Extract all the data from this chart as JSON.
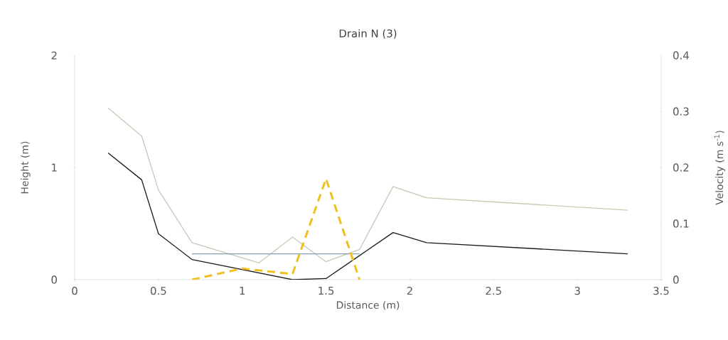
{
  "chart_data": {
    "type": "line",
    "title": "Drain N (3)",
    "xlabel": "Distance (m)",
    "ylabel": "Height (m)",
    "y2label": "Velocity (m s$^{-1}$)",
    "xlim": [
      0,
      3.5
    ],
    "xticks": [
      0,
      0.5,
      1,
      1.5,
      2,
      2.5,
      3,
      3.5
    ],
    "ylim": [
      0,
      2
    ],
    "yticks": [
      0,
      1,
      2
    ],
    "y2lim": [
      0,
      0.4
    ],
    "y2ticks": [
      0,
      0.1,
      0.2,
      0.3,
      0.4
    ],
    "grid": false,
    "marker": "none",
    "series": [
      {
        "color": "#c8c8b4",
        "line_style": "solid",
        "x": [
          0.2,
          0.4,
          0.5,
          0.7,
          1.1,
          1.3,
          1.5,
          1.7,
          1.9,
          2.1,
          3.3
        ],
        "values": [
          1.53,
          1.28,
          0.8,
          0.33,
          0.15,
          0.38,
          0.16,
          0.27,
          0.83,
          0.73,
          0.62
        ]
      },
      {
        "color": "#1a1a1a",
        "line_style": "solid",
        "x": [
          0.2,
          0.4,
          0.5,
          0.7,
          1.3,
          1.5,
          1.9,
          2.1,
          3.3
        ],
        "values": [
          1.13,
          0.89,
          0.41,
          0.18,
          0,
          0.01,
          0.42,
          0.33,
          0.23
        ]
      },
      {
        "color": "#7f9fb4",
        "line_style": "solid",
        "x": [
          0.7,
          1.7
        ],
        "values": [
          0.23,
          0.23
        ]
      },
      {
        "color": "#f0c020",
        "line_style": "dashed",
        "axis": "y2",
        "x": [
          0.7,
          1.0,
          1.3,
          1.5,
          1.7
        ],
        "values": [
          0,
          0.02,
          0.01,
          0.18,
          0
        ]
      }
    ]
  }
}
